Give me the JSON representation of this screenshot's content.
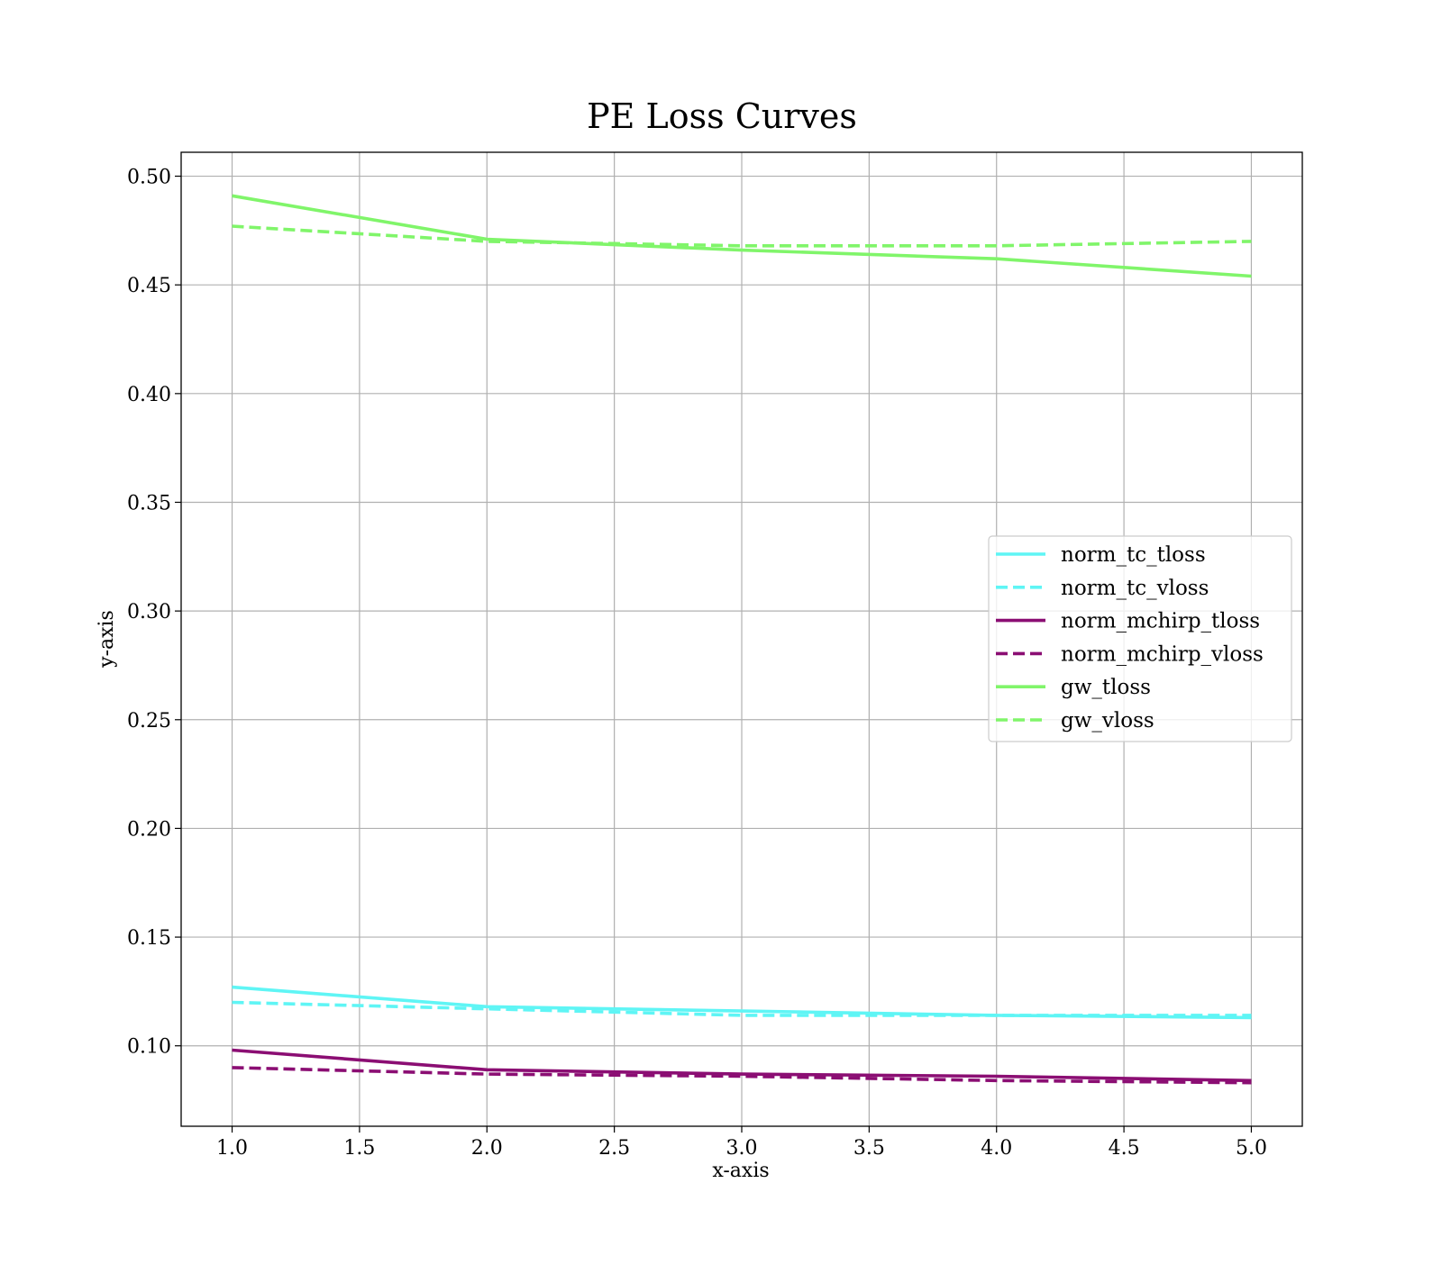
{
  "chart_data": {
    "type": "line",
    "title": "PE Loss Curves",
    "xlabel": "x-axis",
    "ylabel": "y-axis",
    "xlim": [
      0.8,
      5.2
    ],
    "ylim": [
      0.063,
      0.511
    ],
    "xticks": [
      1.0,
      1.5,
      2.0,
      2.5,
      3.0,
      3.5,
      4.0,
      4.5,
      5.0
    ],
    "xtick_labels": [
      "1.0",
      "1.5",
      "2.0",
      "2.5",
      "3.0",
      "3.5",
      "4.0",
      "4.5",
      "5.0"
    ],
    "yticks": [
      0.1,
      0.15,
      0.2,
      0.25,
      0.3,
      0.35,
      0.4,
      0.45,
      0.5
    ],
    "ytick_labels": [
      "0.10",
      "0.15",
      "0.20",
      "0.25",
      "0.30",
      "0.35",
      "0.40",
      "0.45",
      "0.50"
    ],
    "grid": true,
    "legend_position": "center-right",
    "x": [
      1,
      2,
      3,
      4,
      5
    ],
    "series": [
      {
        "name": "norm_tc_tloss",
        "values": [
          0.127,
          0.118,
          0.116,
          0.114,
          0.113
        ],
        "color": "#5ff5f5",
        "dash": false
      },
      {
        "name": "norm_tc_vloss",
        "values": [
          0.12,
          0.117,
          0.114,
          0.114,
          0.114
        ],
        "color": "#5ff5f5",
        "dash": true
      },
      {
        "name": "norm_mchirp_tloss",
        "values": [
          0.098,
          0.089,
          0.087,
          0.086,
          0.084
        ],
        "color": "#8b0e73",
        "dash": false
      },
      {
        "name": "norm_mchirp_vloss",
        "values": [
          0.09,
          0.087,
          0.086,
          0.084,
          0.083
        ],
        "color": "#8b0e73",
        "dash": true
      },
      {
        "name": "gw_tloss",
        "values": [
          0.491,
          0.471,
          0.466,
          0.462,
          0.454
        ],
        "color": "#80f56a",
        "dash": false
      },
      {
        "name": "gw_vloss",
        "values": [
          0.477,
          0.47,
          0.468,
          0.468,
          0.47
        ],
        "color": "#80f56a",
        "dash": true
      }
    ]
  }
}
